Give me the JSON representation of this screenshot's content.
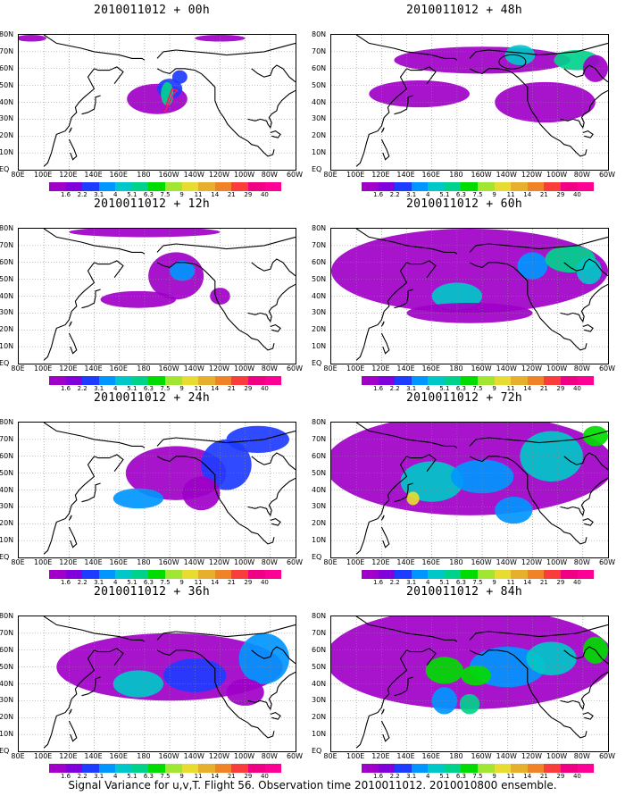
{
  "panels": [
    {
      "title": "2010011012 + 00h"
    },
    {
      "title": "2010011012 + 48h"
    },
    {
      "title": "2010011012 + 12h"
    },
    {
      "title": "2010011012 + 60h"
    },
    {
      "title": "2010011012 + 24h"
    },
    {
      "title": "2010011012 + 72h"
    },
    {
      "title": "2010011012 + 36h"
    },
    {
      "title": "2010011012 + 84h"
    }
  ],
  "lat_labels": [
    "80N",
    "70N",
    "60N",
    "50N",
    "40N",
    "30N",
    "20N",
    "10N",
    "EQ"
  ],
  "lon_labels": [
    "80E",
    "100E",
    "120E",
    "140E",
    "160E",
    "180",
    "160W",
    "140W",
    "120W",
    "100W",
    "80W",
    "60W"
  ],
  "colorbar": {
    "labels": [
      "1.6",
      "2.2",
      "3.1",
      "4",
      "5.1",
      "6.3",
      "7.5",
      "9",
      "11",
      "14",
      "21",
      "29",
      "40"
    ],
    "colors": [
      "#a000c8",
      "#8200dc",
      "#1e3cff",
      "#0096ff",
      "#00c8c8",
      "#00d28c",
      "#00dc00",
      "#a0e632",
      "#e6dc32",
      "#e6af2d",
      "#f08228",
      "#fa3c3c",
      "#f00082"
    ]
  },
  "caption": "Signal Variance for u,v,T. Flight 56. Observation time 2010011012. 2010010800 ensemble."
}
